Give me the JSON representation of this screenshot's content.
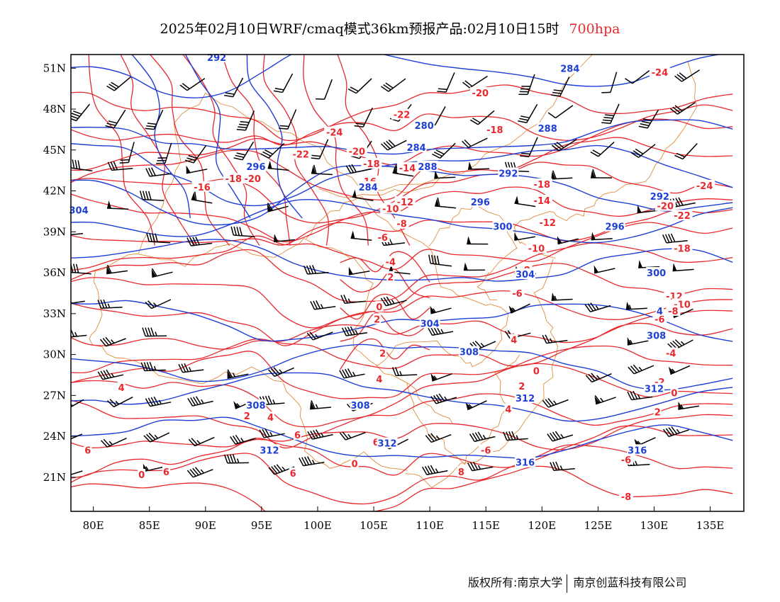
{
  "title": {
    "main": "2025年02月10日WRF/cmaq模式36km预报产品:02月10日15时",
    "level": "700hpa"
  },
  "colors": {
    "temperature": "#e8282d",
    "height": "#1e3fd6",
    "border": "#e08c3c",
    "barb": "#000000"
  },
  "map": {
    "lon_range": [
      78,
      138
    ],
    "lat_range": [
      18.5,
      52
    ],
    "x_ticks": [
      "80E",
      "85E",
      "90E",
      "95E",
      "100E",
      "105E",
      "110E",
      "115E",
      "120E",
      "125E",
      "130E",
      "135E"
    ],
    "x_tick_values": [
      80,
      85,
      90,
      95,
      100,
      105,
      110,
      115,
      120,
      125,
      130,
      135
    ],
    "y_ticks": [
      "21N",
      "24N",
      "27N",
      "30N",
      "33N",
      "36N",
      "39N",
      "42N",
      "45N",
      "48N",
      "51N"
    ],
    "y_tick_values": [
      21,
      24,
      27,
      30,
      33,
      36,
      39,
      42,
      45,
      48,
      51
    ]
  },
  "height_labels": [
    {
      "text": "292",
      "lon": 91,
      "lat": 51.8
    },
    {
      "text": "284",
      "lon": 122.5,
      "lat": 51.0
    },
    {
      "text": "288",
      "lon": 120.5,
      "lat": 46.6
    },
    {
      "text": "280",
      "lon": 109.5,
      "lat": 46.8
    },
    {
      "text": "284",
      "lon": 108.8,
      "lat": 45.2
    },
    {
      "text": "288",
      "lon": 109.8,
      "lat": 43.8
    },
    {
      "text": "296",
      "lon": 94.5,
      "lat": 43.8
    },
    {
      "text": "292",
      "lon": 117,
      "lat": 43.3
    },
    {
      "text": "284",
      "lon": 104.5,
      "lat": 42.3
    },
    {
      "text": "304",
      "lon": 78.7,
      "lat": 40.6
    },
    {
      "text": "296",
      "lon": 114.5,
      "lat": 41.2
    },
    {
      "text": "292",
      "lon": 130.5,
      "lat": 41.6
    },
    {
      "text": "300",
      "lon": 116.5,
      "lat": 39.4
    },
    {
      "text": "296",
      "lon": 126.5,
      "lat": 39.4
    },
    {
      "text": "304",
      "lon": 118.5,
      "lat": 35.9
    },
    {
      "text": "300",
      "lon": 130.2,
      "lat": 36.0
    },
    {
      "text": "304",
      "lon": 110,
      "lat": 32.3
    },
    {
      "text": "4",
      "lon": 130.5,
      "lat": 33.2
    },
    {
      "text": "308",
      "lon": 130.2,
      "lat": 31.4
    },
    {
      "text": "308",
      "lon": 113.5,
      "lat": 30.2
    },
    {
      "text": "308",
      "lon": 94.5,
      "lat": 26.3
    },
    {
      "text": "308",
      "lon": 103.8,
      "lat": 26.3
    },
    {
      "text": "312",
      "lon": 130,
      "lat": 27.5
    },
    {
      "text": "312",
      "lon": 118.5,
      "lat": 26.8
    },
    {
      "text": "312",
      "lon": 95.7,
      "lat": 23.0
    },
    {
      "text": "312",
      "lon": 106.2,
      "lat": 23.5
    },
    {
      "text": "316",
      "lon": 118.5,
      "lat": 22.1
    },
    {
      "text": "316",
      "lon": 128.5,
      "lat": 23.0
    }
  ],
  "temp_labels": [
    {
      "text": "-24",
      "lon": 130.5,
      "lat": 50.7
    },
    {
      "text": "-20",
      "lon": 114.5,
      "lat": 49.2
    },
    {
      "text": "-22",
      "lon": 107.5,
      "lat": 47.6
    },
    {
      "text": "-18",
      "lon": 115.8,
      "lat": 46.5
    },
    {
      "text": "-24",
      "lon": 101.5,
      "lat": 46.3
    },
    {
      "text": "-20",
      "lon": 103.5,
      "lat": 44.9
    },
    {
      "text": "-22",
      "lon": 98.5,
      "lat": 44.7
    },
    {
      "text": "-18",
      "lon": 104.8,
      "lat": 44.0
    },
    {
      "text": "-14",
      "lon": 108,
      "lat": 43.7
    },
    {
      "text": "-18",
      "lon": 92.5,
      "lat": 42.9
    },
    {
      "text": "-20",
      "lon": 94.2,
      "lat": 42.9
    },
    {
      "text": "-16",
      "lon": 89.7,
      "lat": 42.3
    },
    {
      "text": "-16",
      "lon": 104.5,
      "lat": 42.7
    },
    {
      "text": "-18",
      "lon": 120,
      "lat": 42.5
    },
    {
      "text": "-24",
      "lon": 134.5,
      "lat": 42.4
    },
    {
      "text": "-14",
      "lon": 120,
      "lat": 41.3
    },
    {
      "text": "-12",
      "lon": 107.8,
      "lat": 41.2
    },
    {
      "text": "-10",
      "lon": 106.5,
      "lat": 40.7
    },
    {
      "text": "-20",
      "lon": 131,
      "lat": 40.9
    },
    {
      "text": "-22",
      "lon": 132.5,
      "lat": 40.2
    },
    {
      "text": "-8",
      "lon": 107.5,
      "lat": 39.6
    },
    {
      "text": "-12",
      "lon": 120.5,
      "lat": 39.7
    },
    {
      "text": "-6",
      "lon": 105.8,
      "lat": 38.6
    },
    {
      "text": "-10",
      "lon": 119.5,
      "lat": 37.8
    },
    {
      "text": "-18",
      "lon": 132.5,
      "lat": 37.8
    },
    {
      "text": "-4",
      "lon": 106.5,
      "lat": 36.8
    },
    {
      "text": "2",
      "lon": 106.5,
      "lat": 35.7
    },
    {
      "text": "-8",
      "lon": 118.5,
      "lat": 36.2
    },
    {
      "text": "-6",
      "lon": 117.8,
      "lat": 34.5
    },
    {
      "text": "-12",
      "lon": 131.8,
      "lat": 34.3
    },
    {
      "text": "-10",
      "lon": 132.5,
      "lat": 33.7
    },
    {
      "text": "-8",
      "lon": 131.7,
      "lat": 33.2
    },
    {
      "text": "-6",
      "lon": 130.5,
      "lat": 32.6
    },
    {
      "text": "0",
      "lon": 105.5,
      "lat": 33.5
    },
    {
      "text": "2",
      "lon": 105.3,
      "lat": 32.6
    },
    {
      "text": "4",
      "lon": 117.5,
      "lat": 31.1
    },
    {
      "text": "-4",
      "lon": 131.5,
      "lat": 30.1
    },
    {
      "text": "2",
      "lon": 105.8,
      "lat": 30.1
    },
    {
      "text": "4",
      "lon": 105.5,
      "lat": 28.2
    },
    {
      "text": "0",
      "lon": 119.5,
      "lat": 28.8
    },
    {
      "text": "2",
      "lon": 118.2,
      "lat": 27.7
    },
    {
      "text": "-2",
      "lon": 130.5,
      "lat": 28.0
    },
    {
      "text": "0",
      "lon": 131.8,
      "lat": 27.2
    },
    {
      "text": "4",
      "lon": 82.5,
      "lat": 27.6
    },
    {
      "text": "4",
      "lon": 117,
      "lat": 26.0
    },
    {
      "text": "2",
      "lon": 130.3,
      "lat": 25.8
    },
    {
      "text": "2",
      "lon": 93.7,
      "lat": 25.5
    },
    {
      "text": "4",
      "lon": 95.8,
      "lat": 25.4
    },
    {
      "text": "6",
      "lon": 98.2,
      "lat": 24.1
    },
    {
      "text": "6",
      "lon": 105.2,
      "lat": 23.6
    },
    {
      "text": "6",
      "lon": 79.5,
      "lat": 23.0
    },
    {
      "text": "-6",
      "lon": 115,
      "lat": 23.0
    },
    {
      "text": "-6",
      "lon": 127.5,
      "lat": 22.3
    },
    {
      "text": "0",
      "lon": 103.3,
      "lat": 22.0
    },
    {
      "text": "6",
      "lon": 86.5,
      "lat": 21.4
    },
    {
      "text": "0",
      "lon": 84.3,
      "lat": 21.2
    },
    {
      "text": "6",
      "lon": 97.8,
      "lat": 21.3
    },
    {
      "text": "8",
      "lon": 112.8,
      "lat": 21.4
    },
    {
      "text": "-8",
      "lon": 127.5,
      "lat": 19.6
    }
  ],
  "copyright": {
    "left": "版权所有:南京大学",
    "right": "南京创蓝科技有限公司"
  }
}
